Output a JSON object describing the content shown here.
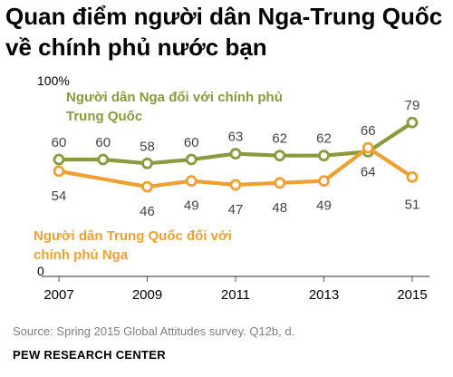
{
  "title": "Quan điểm người dân Nga-Trung Quốc về chính phủ nước bạn",
  "source": "Source: Spring 2015 Global Attitudes survey. Q12b, d.",
  "organization": "PEW RESEARCH CENTER",
  "chart_data": {
    "type": "line",
    "x": [
      2007,
      2008,
      2009,
      2010,
      2011,
      2012,
      2013,
      2014,
      2015
    ],
    "x_tick_labels": [
      "2007",
      "2009",
      "2011",
      "2013",
      "2015"
    ],
    "y_tick_labels": [
      "100%",
      "0"
    ],
    "ylim": [
      0,
      100
    ],
    "grid": false,
    "series": [
      {
        "name": "Người dân Nga đối với chính phủ Trung Quốc",
        "label_lines": [
          "Người dân Nga đối với chính phủ",
          "Trung Quốc"
        ],
        "color": "#8a9a3c",
        "values": [
          60,
          60,
          58,
          60,
          63,
          62,
          62,
          64,
          79
        ]
      },
      {
        "name": "Người dân Trung Quốc đối với chính phủ Nga",
        "label_lines": [
          "Người dân Trung Quốc đối với",
          "chính phủ Nga"
        ],
        "color": "#f0a030",
        "values": [
          54,
          null,
          46,
          49,
          47,
          48,
          49,
          66,
          51
        ]
      }
    ]
  }
}
